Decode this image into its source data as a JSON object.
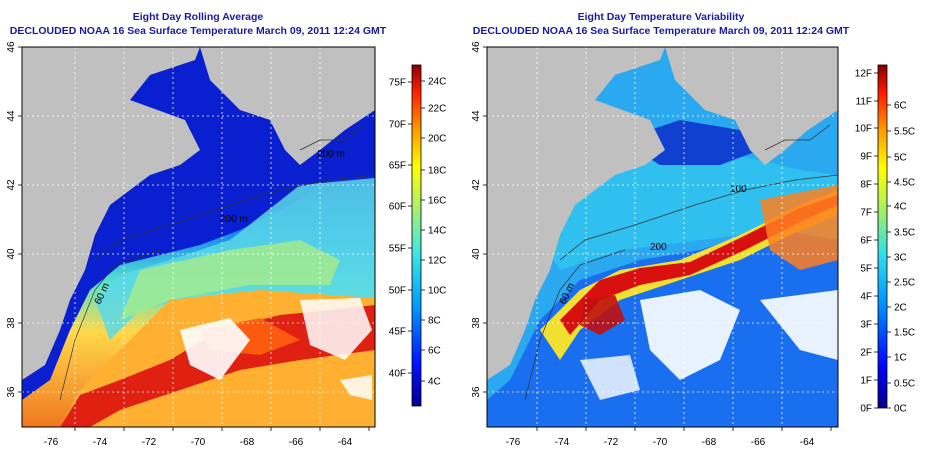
{
  "colors": {
    "title": "#1a1aa0",
    "land": "#c0c0c0",
    "cloud": "#ffffff"
  },
  "panels": [
    {
      "id": "left",
      "title1": "Eight Day Rolling Average",
      "title2": "DECLOUDED NOAA 16 Sea Surface Temperature March 09, 2011 12:24 GMT",
      "lon_ticks": [
        "-76",
        "-74",
        "-72",
        "-70",
        "-68",
        "-66",
        "-64"
      ],
      "lat_ticks": [
        "36",
        "38",
        "40",
        "42",
        "44",
        "46"
      ],
      "contour_labels": [
        "200 m",
        "200 m",
        "60 m"
      ],
      "colorbar": {
        "left_labels": [
          "75F",
          "70F",
          "65F",
          "60F",
          "55F",
          "50F",
          "45F",
          "40F"
        ],
        "right_labels": [
          "24C",
          "22C",
          "20C",
          "18C",
          "16C",
          "14C",
          "12C",
          "10C",
          "8C",
          "6C",
          "4C"
        ]
      }
    },
    {
      "id": "right",
      "title1": "Eight Day Temperature Variability",
      "title2": "DECLOUDED NOAA 16 Sea Surface Temperature March 09, 2011 12:24 GMT",
      "lon_ticks": [
        "-76",
        "-74",
        "-72",
        "-70",
        "-68",
        "-66",
        "-64"
      ],
      "lat_ticks": [
        "36",
        "38",
        "40",
        "42",
        "44",
        "46"
      ],
      "contour_labels": [
        "100",
        "200",
        "60 m"
      ],
      "colorbar": {
        "left_labels": [
          "12F",
          "11F",
          "10F",
          "9F",
          "8F",
          "7F",
          "6F",
          "5F",
          "4F",
          "3F",
          "2F",
          "1F",
          "0F"
        ],
        "right_labels": [
          "6C",
          "5.5C",
          "5C",
          "4.5C",
          "4C",
          "3.5C",
          "3C",
          "2.5C",
          "2C",
          "1.5C",
          "1C",
          "0.5C",
          "0C"
        ]
      }
    }
  ]
}
